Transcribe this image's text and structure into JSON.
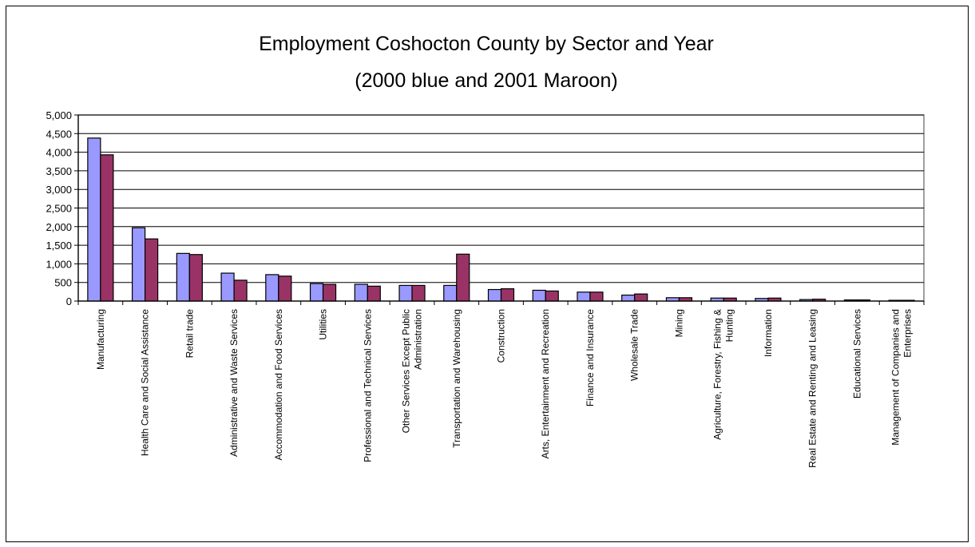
{
  "chart_data": {
    "type": "bar",
    "title_line1": "Employment Coshocton County by Sector and Year",
    "title_line2": "(2000 blue and 2001 Maroon)",
    "xlabel": "",
    "ylabel": "",
    "ylim": [
      0,
      5000
    ],
    "yticks": [
      "0",
      "500",
      "1,000",
      "1,500",
      "2,000",
      "2,500",
      "3,000",
      "3,500",
      "4,000",
      "4,500",
      "5,000"
    ],
    "grid": true,
    "categories": [
      [
        "Manufacturing"
      ],
      [
        "Health Care and Social Assistance"
      ],
      [
        "Retail trade"
      ],
      [
        "Administrative and Waste Services"
      ],
      [
        "Accommodation and Food Services"
      ],
      [
        "Utilities"
      ],
      [
        "Professional and Technical Services"
      ],
      [
        "Other Services Except Public",
        "Administration"
      ],
      [
        "Transportation and Warehousing"
      ],
      [
        "Construction"
      ],
      [
        "Arts, Entertainment and Recreation"
      ],
      [
        "Finance and Insurance"
      ],
      [
        "Wholesale Trade"
      ],
      [
        "Mining"
      ],
      [
        "Agriculture, Forestry, Fishing &",
        "Hunting"
      ],
      [
        "Information"
      ],
      [
        "Real Estate and Renting  and Leasing"
      ],
      [
        "Educational Services"
      ],
      [
        "Management of Companies and",
        "Enterprises"
      ]
    ],
    "series": [
      {
        "color": "#9999ff",
        "values": [
          4380,
          1970,
          1280,
          750,
          710,
          470,
          450,
          420,
          420,
          310,
          290,
          240,
          160,
          90,
          80,
          70,
          40,
          30,
          20
        ]
      },
      {
        "color": "#993366",
        "values": [
          3930,
          1670,
          1250,
          560,
          670,
          450,
          400,
          420,
          1260,
          330,
          270,
          240,
          190,
          90,
          80,
          80,
          50,
          30,
          20
        ]
      }
    ]
  }
}
